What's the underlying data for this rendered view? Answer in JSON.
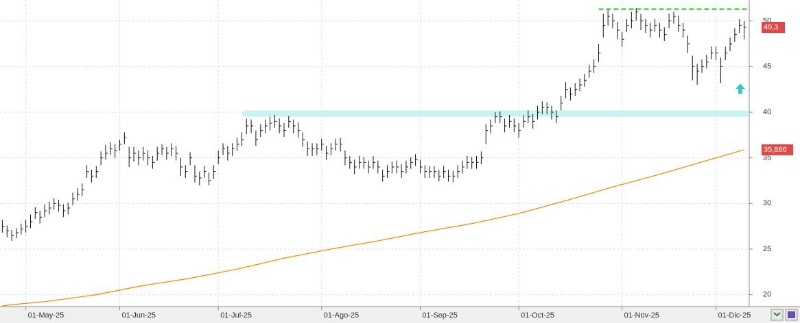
{
  "chart_data": {
    "type": "ohlc",
    "categories": [
      null,
      null,
      null,
      null,
      null,
      "01-May-25",
      null,
      null,
      null,
      null,
      null,
      null,
      null,
      null,
      null,
      null,
      null,
      null,
      null,
      null,
      null,
      null,
      null,
      null,
      null,
      "01-Jun-25",
      null,
      null,
      null,
      null,
      null,
      null,
      null,
      null,
      null,
      null,
      null,
      null,
      null,
      null,
      null,
      null,
      null,
      null,
      null,
      null,
      "01-Jul-25",
      null,
      null,
      null,
      null,
      null,
      null,
      null,
      null,
      null,
      null,
      null,
      null,
      null,
      null,
      null,
      null,
      null,
      null,
      null,
      null,
      null,
      "01-Ago-25",
      null,
      null,
      null,
      null,
      null,
      null,
      null,
      null,
      null,
      null,
      null,
      null,
      null,
      null,
      null,
      null,
      null,
      null,
      null,
      null,
      "01-Sep-25",
      null,
      null,
      null,
      null,
      null,
      null,
      null,
      null,
      null,
      null,
      null,
      null,
      null,
      null,
      null,
      null,
      null,
      null,
      null,
      null,
      "01-Oct-25",
      null,
      null,
      null,
      null,
      null,
      null,
      null,
      null,
      null,
      null,
      null,
      null,
      null,
      null,
      null,
      null,
      null,
      null,
      null,
      null,
      null,
      "01-Nov-25",
      null,
      null,
      null,
      null,
      null,
      null,
      null,
      null,
      null,
      null,
      null,
      null,
      null,
      null,
      null,
      null,
      null,
      null,
      null,
      "01-Dic-25",
      null,
      null,
      null,
      null,
      null,
      null
    ],
    "close": [
      27.5,
      27,
      26.5,
      26.8,
      27.2,
      27.5,
      28,
      29,
      28.5,
      29.2,
      29.5,
      30,
      29.8,
      29.2,
      29.5,
      30.5,
      31,
      31.5,
      33.5,
      33,
      33.5,
      35,
      35.5,
      36,
      35.8,
      36.5,
      37.2,
      35,
      35.5,
      35,
      35.5,
      35,
      34.5,
      35.5,
      36,
      35.5,
      36,
      35.5,
      34,
      33.5,
      35,
      33,
      32.8,
      33.5,
      32.5,
      33.5,
      35,
      36,
      35.5,
      36,
      36.5,
      37,
      38.5,
      38.5,
      37,
      38,
      38.5,
      38.8,
      39,
      38.5,
      38,
      39,
      38.5,
      38,
      37,
      36,
      36,
      36,
      36.5,
      35.5,
      36,
      36.5,
      36.5,
      35,
      34.5,
      34,
      34.5,
      34.5,
      34,
      34.5,
      34,
      33,
      33.5,
      34,
      34,
      33.5,
      34,
      34.5,
      34.8,
      34,
      33.5,
      33.5,
      33.5,
      33,
      33.5,
      33,
      33,
      33.5,
      34,
      34.5,
      34.5,
      34.5,
      35,
      38,
      38.5,
      39.5,
      39.5,
      38.5,
      39,
      38.5,
      38,
      39,
      39.5,
      39,
      40,
      40.5,
      40.5,
      40,
      39.5,
      41,
      42.5,
      42,
      42.5,
      43,
      43.5,
      44.5,
      45,
      46.5,
      49.5,
      50.5,
      50,
      49,
      48,
      49.5,
      50,
      51,
      50,
      49.5,
      49,
      49.5,
      49,
      48.5,
      50,
      50.5,
      49.5,
      49,
      47.5,
      45,
      44.5,
      45,
      45.5,
      46.5,
      46.5,
      45,
      46.5,
      47.5,
      48.5,
      49.5,
      49.3
    ],
    "high": [
      28.2,
      27.6,
      27.1,
      27.3,
      27.8,
      28.2,
      28.8,
      29.6,
      29.2,
      29.9,
      30.2,
      30.6,
      30.4,
      29.9,
      30.1,
      31.2,
      31.7,
      32.2,
      34.2,
      33.7,
      34.1,
      35.7,
      36.4,
      36.7,
      36.5,
      37,
      37.8,
      36.2,
      36.2,
      35.8,
      36.2,
      35.8,
      35.2,
      36.2,
      36.5,
      36.2,
      36.6,
      36.3,
      35,
      34.2,
      35.6,
      34.2,
      33.5,
      34.1,
      33.4,
      34.2,
      35.8,
      36.6,
      36.3,
      36.6,
      37.2,
      37.8,
      39.3,
      39.2,
      38,
      38.7,
      39.2,
      39.5,
      39.7,
      39.3,
      38.8,
      39.6,
      39.2,
      38.9,
      37.8,
      36.8,
      36.6,
      36.6,
      37.1,
      36.3,
      36.6,
      37.1,
      37.2,
      35.8,
      35.2,
      34.8,
      35.2,
      35.1,
      34.7,
      35.2,
      34.7,
      33.7,
      34.2,
      34.6,
      34.7,
      34.3,
      34.7,
      35.1,
      35.4,
      34.8,
      34.2,
      34.1,
      34.1,
      33.7,
      34.1,
      33.7,
      33.6,
      34.2,
      34.7,
      35.2,
      35.1,
      35.2,
      35.7,
      38.7,
      39.2,
      40,
      40.1,
      39.3,
      39.7,
      39.3,
      38.8,
      39.7,
      40.2,
      39.8,
      40.7,
      41.2,
      41.1,
      40.7,
      40.2,
      41.8,
      43.3,
      42.7,
      43.2,
      43.7,
      44.2,
      45.2,
      45.8,
      47.5,
      50.8,
      51.2,
      50.8,
      49.9,
      48.8,
      50.2,
      51,
      51.4,
      50.8,
      50.2,
      49.8,
      50.2,
      49.8,
      49.3,
      50.8,
      51,
      50.6,
      49.8,
      48.4,
      46.2,
      45.3,
      45.8,
      46.3,
      47.2,
      47.2,
      46,
      47.2,
      48.2,
      49.2,
      50.2,
      50
    ],
    "low": [
      26.8,
      26.3,
      25.9,
      26.2,
      26.6,
      26.8,
      27.3,
      28.3,
      27.8,
      28.5,
      28.8,
      29.3,
      29.1,
      28.5,
      28.8,
      29.8,
      30.3,
      30.8,
      32.8,
      32.3,
      32.8,
      34.2,
      34.8,
      35.3,
      35,
      35.8,
      36.5,
      34,
      34.6,
      34.2,
      34.7,
      34.2,
      33.8,
      34.7,
      35.3,
      34.8,
      35.2,
      34.7,
      33,
      32.8,
      34.2,
      32.3,
      32,
      32.8,
      32,
      32.7,
      34.3,
      35.3,
      34.7,
      35.2,
      35.8,
      36.3,
      37.6,
      37.7,
      36.3,
      37.3,
      37.7,
      38,
      38.3,
      37.7,
      37.3,
      38.3,
      37.7,
      37.2,
      36.2,
      35.2,
      35.2,
      35.3,
      35.8,
      34.8,
      35.3,
      35.8,
      35.7,
      34.2,
      33.8,
      33.2,
      33.8,
      33.8,
      33.3,
      33.8,
      33.3,
      32.4,
      32.8,
      33.3,
      33.3,
      32.8,
      33.3,
      33.8,
      34.1,
      33.3,
      32.8,
      32.8,
      32.8,
      32.4,
      32.8,
      32.4,
      32.3,
      32.8,
      33.3,
      33.8,
      33.8,
      33.8,
      34.3,
      36.5,
      37.7,
      38.8,
      38.8,
      37.8,
      38.3,
      37.8,
      37.2,
      38.3,
      38.8,
      38.2,
      39.2,
      39.8,
      39.8,
      39.2,
      38.8,
      40.2,
      41.5,
      41.3,
      41.8,
      42.3,
      42.8,
      43.8,
      44.3,
      45.5,
      48.2,
      49.5,
      49.2,
      48,
      47.2,
      48.8,
      49.2,
      50,
      49,
      48.7,
      48.2,
      48.8,
      48.2,
      47.8,
      49.2,
      49.7,
      48.8,
      48.2,
      46.5,
      43.5,
      43,
      44.3,
      44.8,
      45.8,
      45.7,
      43.2,
      45.7,
      46.7,
      47.7,
      48.7,
      48
    ],
    "ma": {
      "x": [
        0,
        10,
        20,
        30,
        40,
        50,
        60,
        70,
        80,
        90,
        100,
        110,
        120,
        130,
        140,
        150,
        158
      ],
      "values": [
        18.8,
        19.3,
        20,
        21,
        21.8,
        22.8,
        24,
        25,
        25.9,
        26.9,
        27.8,
        28.9,
        30.3,
        31.8,
        33.2,
        34.7,
        35.886
      ],
      "color": "#f0900a"
    },
    "resistance": {
      "value": 51.3,
      "start": 127,
      "color": "#22cc22"
    },
    "support_zone": {
      "low": 39.5,
      "high": 40.2,
      "start": 51,
      "color": "#c8f2f4"
    },
    "price_labels": [
      {
        "value": 49.3,
        "label": "49,3"
      },
      {
        "value": 35.886,
        "label": "35,886"
      }
    ],
    "ylim": [
      18.7,
      52.3
    ],
    "yticks": [
      20,
      25,
      30,
      35,
      40,
      45,
      50
    ],
    "grid": true,
    "bar_color": "#111111"
  }
}
